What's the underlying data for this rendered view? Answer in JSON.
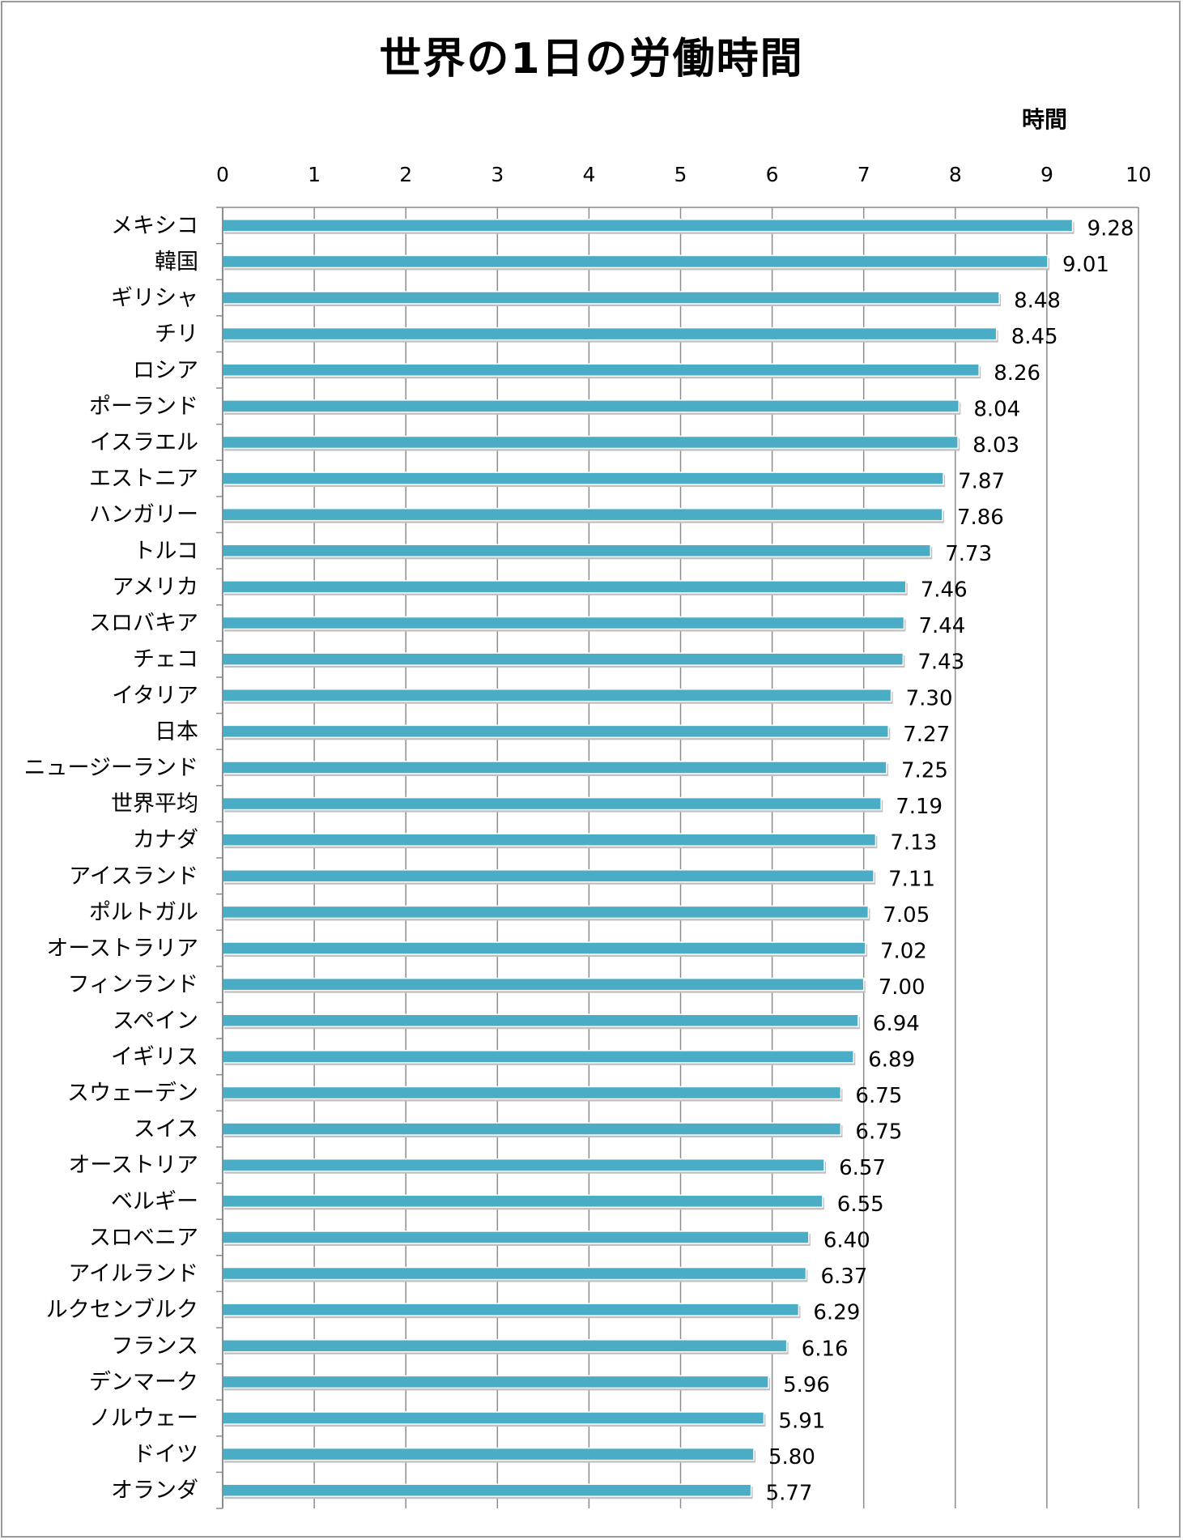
{
  "chart_data": {
    "type": "bar",
    "orientation": "horizontal",
    "title": "世界の1日の労働時間",
    "unit": "時間",
    "categories": [
      "メキシコ",
      "韓国",
      "ギリシャ",
      "チリ",
      "ロシア",
      "ポーランド",
      "イスラエル",
      "エストニア",
      "ハンガリー",
      "トルコ",
      "アメリカ",
      "スロバキア",
      "チェコ",
      "イタリア",
      "日本",
      "ニュージーランド",
      "世界平均",
      "カナダ",
      "アイスランド",
      "ポルトガル",
      "オーストラリア",
      "フィンランド",
      "スペイン",
      "イギリス",
      "スウェーデン",
      "スイス",
      "オーストリア",
      "ベルギー",
      "スロベニア",
      "アイルランド",
      "ルクセンブルク",
      "フランス",
      "デンマーク",
      "ノルウェー",
      "ドイツ",
      "オランダ"
    ],
    "values": [
      9.28,
      9.01,
      8.48,
      8.45,
      8.26,
      8.04,
      8.03,
      7.87,
      7.86,
      7.73,
      7.46,
      7.44,
      7.43,
      7.3,
      7.27,
      7.25,
      7.19,
      7.13,
      7.11,
      7.05,
      7.02,
      7.0,
      6.94,
      6.89,
      6.75,
      6.75,
      6.57,
      6.55,
      6.4,
      6.37,
      6.29,
      6.16,
      5.96,
      5.91,
      5.8,
      5.77
    ],
    "value_labels": [
      "9.28",
      "9.01",
      "8.48",
      "8.45",
      "8.26",
      "8.04",
      "8.03",
      "7.87",
      "7.86",
      "7.73",
      "7.46",
      "7.44",
      "7.43",
      "7.30",
      "7.27",
      "7.25",
      "7.19",
      "7.13",
      "7.11",
      "7.05",
      "7.02",
      "7.00",
      "6.94",
      "6.89",
      "6.75",
      "6.75",
      "6.57",
      "6.55",
      "6.40",
      "6.37",
      "6.29",
      "6.16",
      "5.96",
      "5.91",
      "5.80",
      "5.77"
    ],
    "xlim": [
      0,
      10
    ],
    "x_ticks": [
      "0",
      "1",
      "2",
      "3",
      "4",
      "5",
      "6",
      "7",
      "8",
      "9",
      "10"
    ],
    "x_axis_position": "top",
    "grid": true,
    "legend": "none",
    "bar_color": "#4BACC6",
    "grid_color": "#8C8C8C"
  }
}
